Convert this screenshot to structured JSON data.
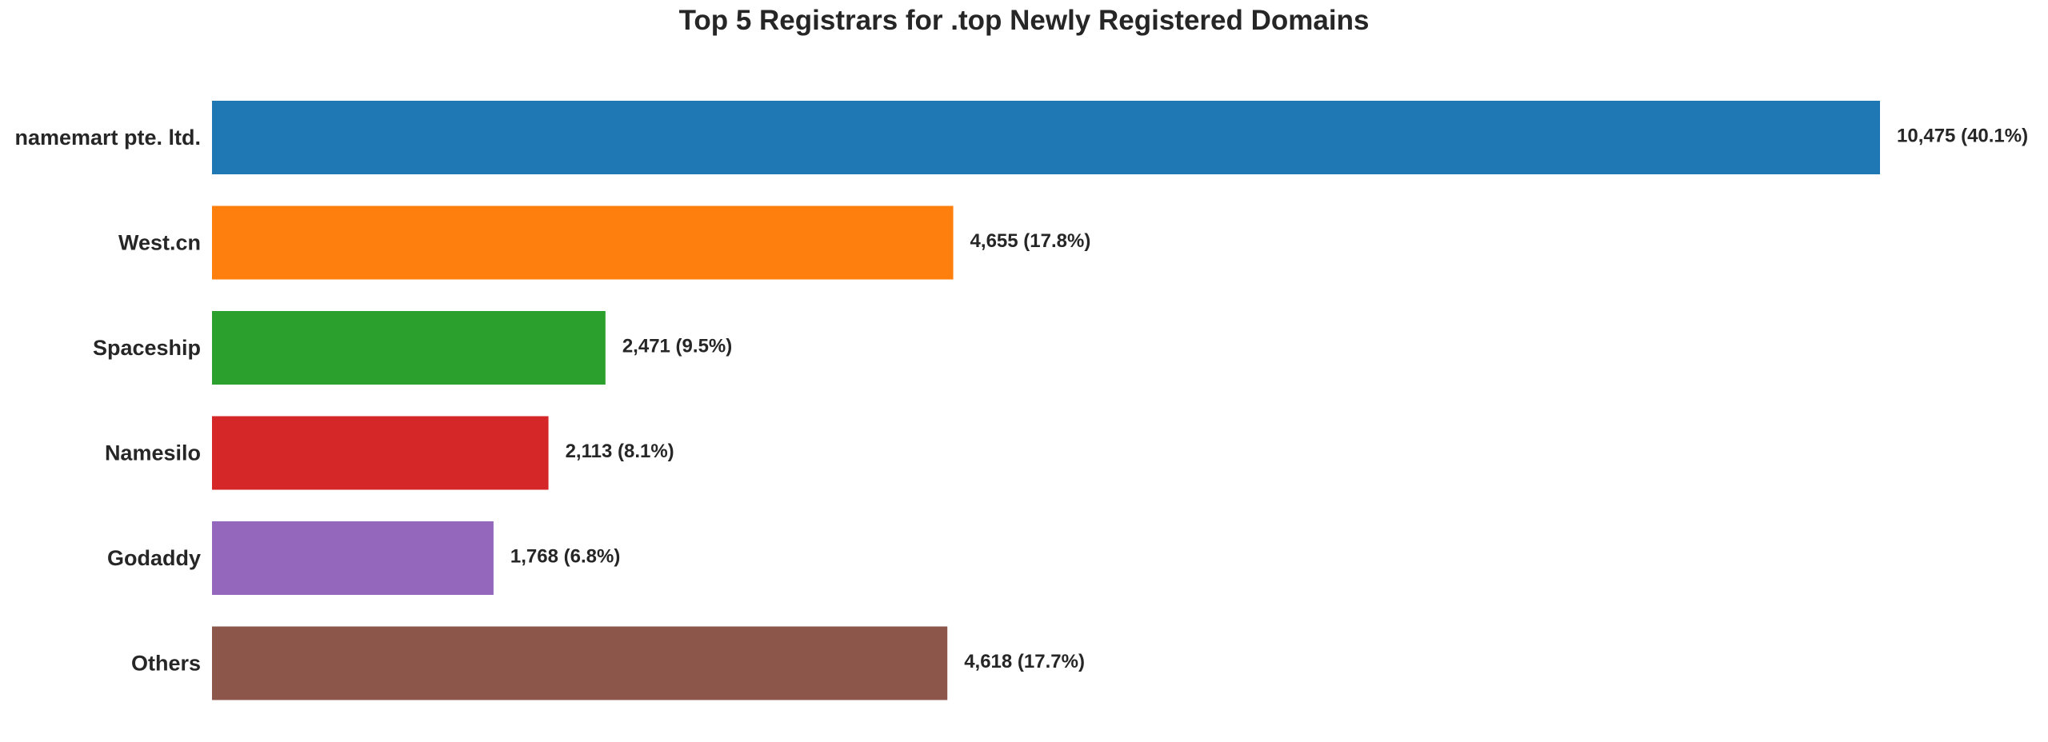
{
  "chart_data": {
    "type": "bar",
    "orientation": "horizontal",
    "title": "Top 5 Registrars for .top Newly Registered Domains",
    "categories": [
      "namemart pte. ltd.",
      "West.cn",
      "Spaceship",
      "Namesilo",
      "Godaddy",
      "Others"
    ],
    "values": [
      10475,
      4655,
      2471,
      2113,
      1768,
      4618
    ],
    "data_labels": [
      "10,475 (40.1%)",
      "4,655 (17.8%)",
      "2,471 (9.5%)",
      "2,113 (8.1%)",
      "1,768 (6.8%)",
      "4,618 (17.7%)"
    ],
    "colors": [
      "#1f77b4",
      "#ff7f0e",
      "#2ca02c",
      "#d62728",
      "#9467bd",
      "#8c564b"
    ],
    "xlim": [
      0,
      10475
    ],
    "grid": false,
    "xlabel": "",
    "ylabel": ""
  }
}
